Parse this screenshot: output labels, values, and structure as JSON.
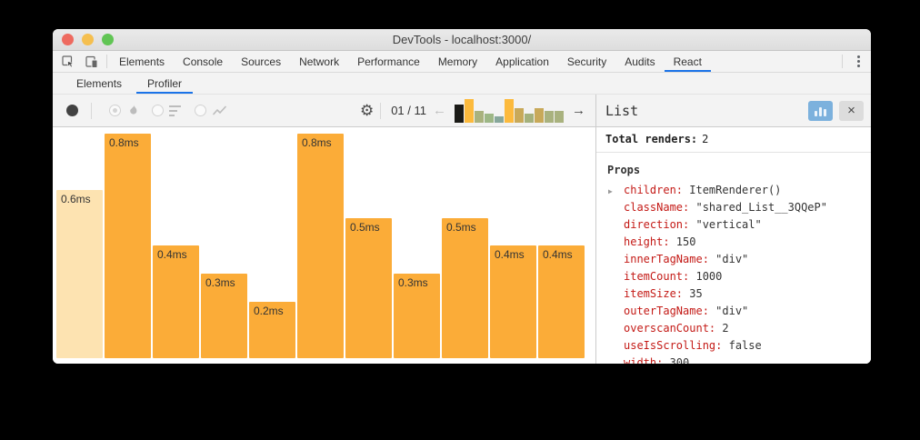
{
  "colors": {
    "accent_blue": "#1a73e8",
    "bar_orange": "#fbac38",
    "bar_selected": "#fde3b1",
    "prop_name_red": "#c41a16",
    "panel_button_blue": "#7cb1dd",
    "traffic_red": "#ee6a5f",
    "traffic_yellow": "#f5bf4f",
    "traffic_green": "#61c554"
  },
  "window": {
    "title": "DevTools - localhost:3000/"
  },
  "tabbar": {
    "tabs": [
      "Elements",
      "Console",
      "Sources",
      "Network",
      "Performance",
      "Memory",
      "Application",
      "Security",
      "Audits",
      "React"
    ],
    "active": "React"
  },
  "subtabbar": {
    "tabs": [
      "Elements",
      "Profiler"
    ],
    "active": "Profiler"
  },
  "toolbar": {
    "commit_counter": "01 / 11",
    "left_arrow": "←",
    "right_arrow": "→",
    "gear_icon": "⚙",
    "minichart": {
      "heights": [
        0.75,
        1,
        0.5,
        0.38,
        0.25,
        1,
        0.63,
        0.38,
        0.63,
        0.5,
        0.5
      ],
      "colors": [
        "#1b1b17",
        "#fcba3d",
        "#a9b27e",
        "#9db786",
        "#87a79b",
        "#fcba3d",
        "#c8a959",
        "#a4b17c",
        "#c8a959",
        "#a9b27e",
        "#a9b27e"
      ]
    }
  },
  "chart_data": {
    "type": "bar",
    "title": "",
    "unit": "ms",
    "values": [
      0.6,
      0.8,
      0.4,
      0.3,
      0.2,
      0.8,
      0.5,
      0.3,
      0.5,
      0.4,
      0.4
    ],
    "labels": [
      "0.6ms",
      "0.8ms",
      "0.4ms",
      "0.3ms",
      "0.2ms",
      "0.8ms",
      "0.5ms",
      "0.3ms",
      "0.5ms",
      "0.4ms",
      "0.4ms"
    ],
    "selected_index": 0,
    "ylim": [
      0,
      0.8
    ],
    "grid": false,
    "legend": "none"
  },
  "panel": {
    "title": "List",
    "total_renders_label": "Total renders:",
    "total_renders_value": "2",
    "props_title": "Props",
    "expand_triangle": "▶",
    "close_icon": "×",
    "props": [
      {
        "name": "children",
        "value": "ItemRenderer()",
        "expandable": true
      },
      {
        "name": "className",
        "value": "\"shared_List__3QQeP\""
      },
      {
        "name": "direction",
        "value": "\"vertical\""
      },
      {
        "name": "height",
        "value": "150"
      },
      {
        "name": "innerTagName",
        "value": "\"div\""
      },
      {
        "name": "itemCount",
        "value": "1000"
      },
      {
        "name": "itemSize",
        "value": "35"
      },
      {
        "name": "outerTagName",
        "value": "\"div\""
      },
      {
        "name": "overscanCount",
        "value": "2"
      },
      {
        "name": "useIsScrolling",
        "value": "false"
      },
      {
        "name": "width",
        "value": "300"
      }
    ]
  }
}
